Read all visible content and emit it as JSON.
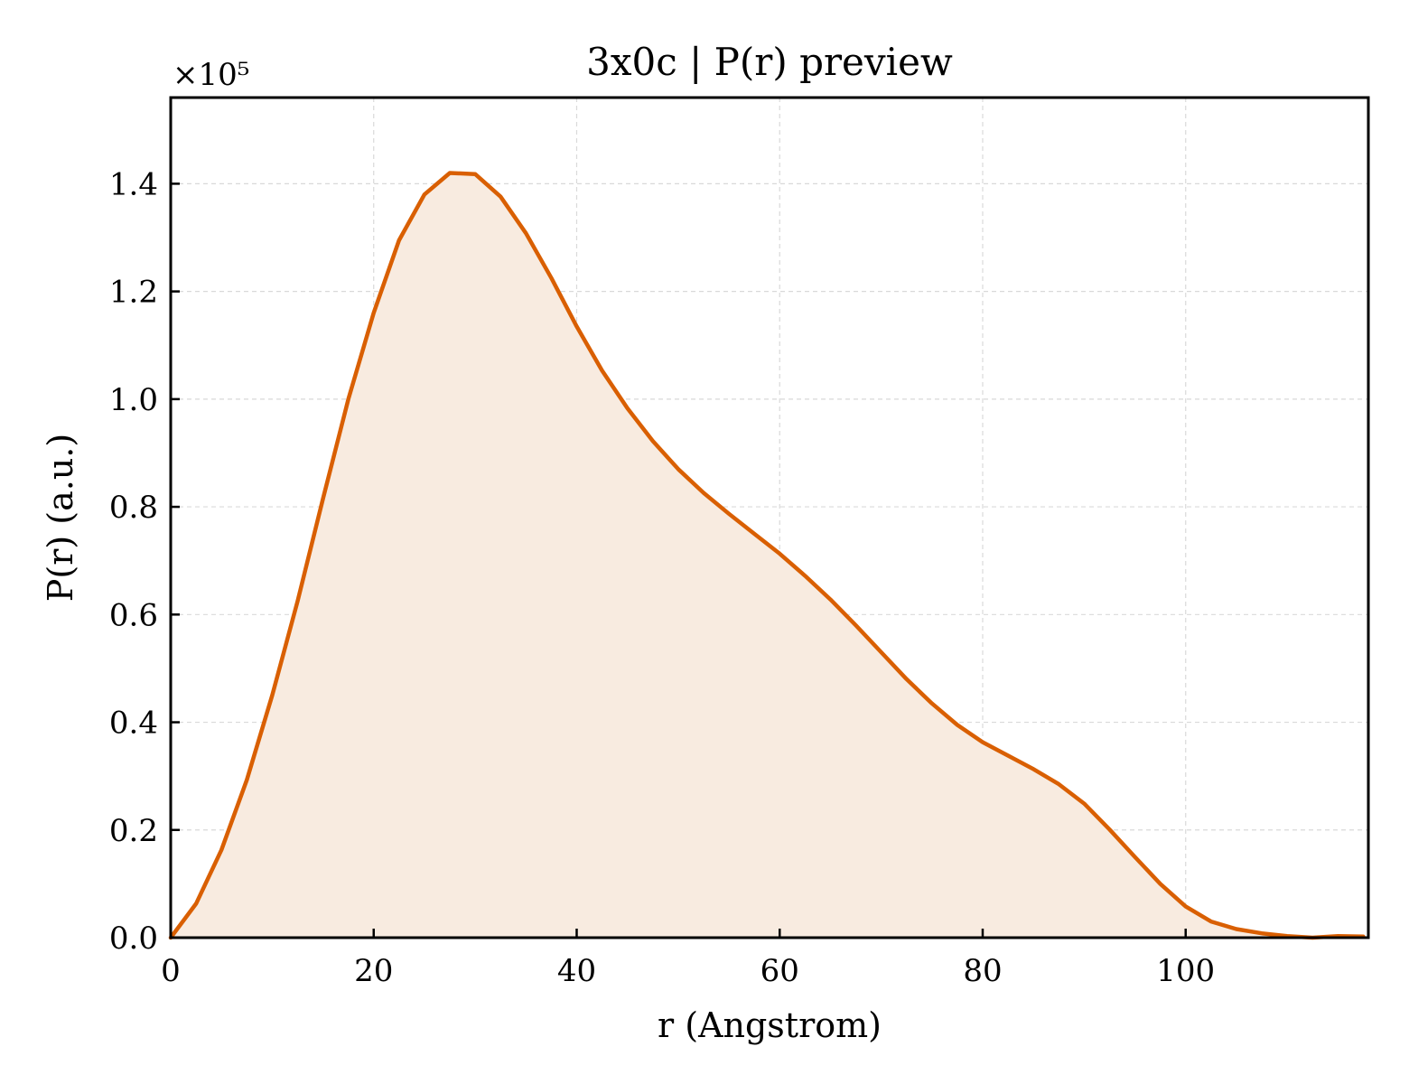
{
  "chart_data": {
    "type": "area",
    "title": "3x0c | P(r) preview",
    "xlabel": "r (Angstrom)",
    "ylabel": "P(r) (a.u.)",
    "y_scale_label": "×10⁵",
    "xlim": [
      0,
      118
    ],
    "ylim": [
      0,
      1.56
    ],
    "xticks": [
      0,
      20,
      40,
      60,
      80,
      100
    ],
    "xtick_labels": [
      "0",
      "20",
      "40",
      "60",
      "80",
      "100"
    ],
    "yticks": [
      0,
      0.2,
      0.4,
      0.6,
      0.8,
      1.0,
      1.2,
      1.4
    ],
    "ytick_labels": [
      "0.0",
      "0.2",
      "0.4",
      "0.6",
      "0.8",
      "1.0",
      "1.2",
      "1.4"
    ],
    "grid": true,
    "line_color": "#d95f02",
    "fill_color": "#f8ebe0",
    "x": [
      0,
      2.5,
      5,
      7.5,
      10,
      12.5,
      15,
      17.5,
      20,
      22.5,
      25,
      27.5,
      30,
      32.5,
      35,
      37.5,
      40,
      42.5,
      45,
      47.5,
      50,
      52.5,
      55,
      57.5,
      60,
      62.5,
      65,
      67.5,
      70,
      72.5,
      75,
      77.5,
      80,
      82.5,
      85,
      87.5,
      90,
      92.5,
      95,
      97.5,
      100,
      102.5,
      105,
      107.5,
      110,
      112.5,
      115,
      117.5
    ],
    "y": [
      0.0,
      0.063,
      0.163,
      0.293,
      0.45,
      0.625,
      0.815,
      1.0,
      1.16,
      1.295,
      1.38,
      1.42,
      1.418,
      1.376,
      1.308,
      1.225,
      1.135,
      1.053,
      0.983,
      0.922,
      0.87,
      0.826,
      0.787,
      0.75,
      0.713,
      0.672,
      0.628,
      0.58,
      0.53,
      0.48,
      0.435,
      0.395,
      0.363,
      0.338,
      0.313,
      0.285,
      0.249,
      0.201,
      0.15,
      0.1,
      0.058,
      0.03,
      0.016,
      0.008,
      0.003,
      0.0,
      0.003,
      0.002
    ]
  }
}
